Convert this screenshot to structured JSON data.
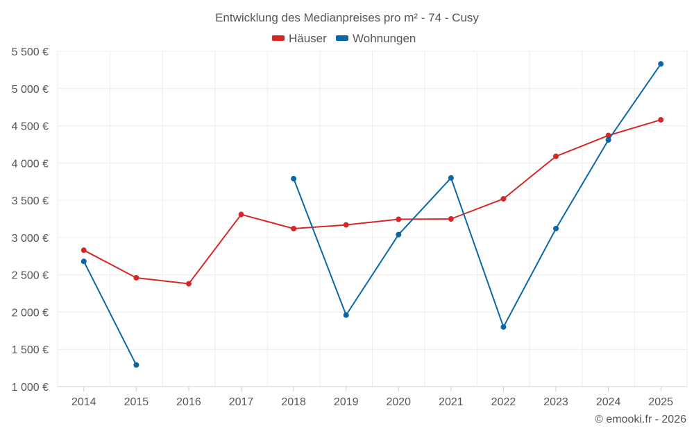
{
  "chart_data": {
    "type": "line",
    "title": "Entwicklung des Medianpreises pro m² - 74 - Cusy",
    "categories": [
      "2014",
      "2015",
      "2016",
      "2017",
      "2018",
      "2019",
      "2020",
      "2021",
      "2022",
      "2023",
      "2024",
      "2025"
    ],
    "ylim": [
      1000,
      5500
    ],
    "yticks": [
      1000,
      1500,
      2000,
      2500,
      3000,
      3500,
      4000,
      4500,
      5000,
      5500
    ],
    "ytick_labels": [
      "1 000 €",
      "1 500 €",
      "2 000 €",
      "2 500 €",
      "3 000 €",
      "3 500 €",
      "4 000 €",
      "4 500 €",
      "5 000 €",
      "5 500 €"
    ],
    "legend_position": "top-center",
    "grid": true,
    "series": [
      {
        "name": "Häuser",
        "color": "#d62728",
        "values": [
          2830,
          2460,
          2380,
          3310,
          3120,
          3170,
          3245,
          3250,
          3520,
          4090,
          4370,
          4580
        ]
      },
      {
        "name": "Wohnungen",
        "color": "#0868a6",
        "values": [
          2680,
          1290,
          null,
          null,
          3790,
          1960,
          3040,
          3800,
          1800,
          3120,
          4310,
          5330
        ]
      }
    ],
    "credit": "© emooki.fr - 2026"
  }
}
